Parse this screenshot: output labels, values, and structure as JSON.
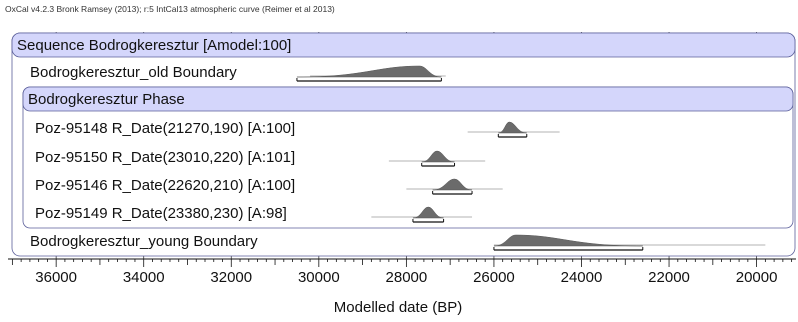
{
  "header": {
    "software_note": "OxCal v4.2.3 Bronk Ramsey (2013); r:5 IntCal13 atmospheric curve (Reimer et al 2013)"
  },
  "colors": {
    "group_fill": "#d4d6fb",
    "group_border": "#5b5f9a",
    "distribution": "#6b6b6b",
    "outline": "#9a9a9a",
    "grid": "#3a3a3a"
  },
  "chart_data": {
    "type": "oxcal-multiplot",
    "xlabel": "Modelled date (BP)",
    "x_ticks": [
      36000,
      34000,
      32000,
      30000,
      28000,
      26000,
      24000,
      22000,
      20000
    ],
    "xlim": [
      37100,
      19100
    ],
    "x_reversed": true,
    "rows": [
      {
        "kind": "group",
        "label": "Sequence Bodrogkeresztur [Amodel:100]"
      },
      {
        "kind": "boundary",
        "label": "Bodrogkeresztur_old Boundary",
        "mode": 27700,
        "range_95": [
          30500,
          27200
        ],
        "unmodelled": [
          30200,
          27100
        ]
      },
      {
        "kind": "subgroup",
        "label": "Bodrogkeresztur Phase"
      },
      {
        "kind": "date",
        "label": "Poz-95148 R_Date(21270,190) [A:100]",
        "mode": 25650,
        "range_95": [
          25900,
          25250
        ],
        "unmodelled": [
          26600,
          24500
        ]
      },
      {
        "kind": "date",
        "label": "Poz-95150 R_Date(23010,220) [A:101]",
        "mode": 27300,
        "range_95": [
          27650,
          26900
        ],
        "unmodelled": [
          28400,
          26200
        ]
      },
      {
        "kind": "date",
        "label": "Poz-95146 R_Date(22620,210) [A:100]",
        "mode": 26900,
        "range_95": [
          27400,
          26500
        ],
        "unmodelled": [
          28000,
          25800
        ]
      },
      {
        "kind": "date",
        "label": "Poz-95149 R_Date(23380,230) [A:98]",
        "mode": 27500,
        "range_95": [
          27850,
          27150
        ],
        "unmodelled": [
          28800,
          26500
        ]
      },
      {
        "kind": "boundary",
        "label": "Bodrogkeresztur_young Boundary",
        "mode": 25500,
        "range_95": [
          26000,
          22600
        ],
        "unmodelled": [
          26000,
          19800
        ]
      }
    ]
  }
}
